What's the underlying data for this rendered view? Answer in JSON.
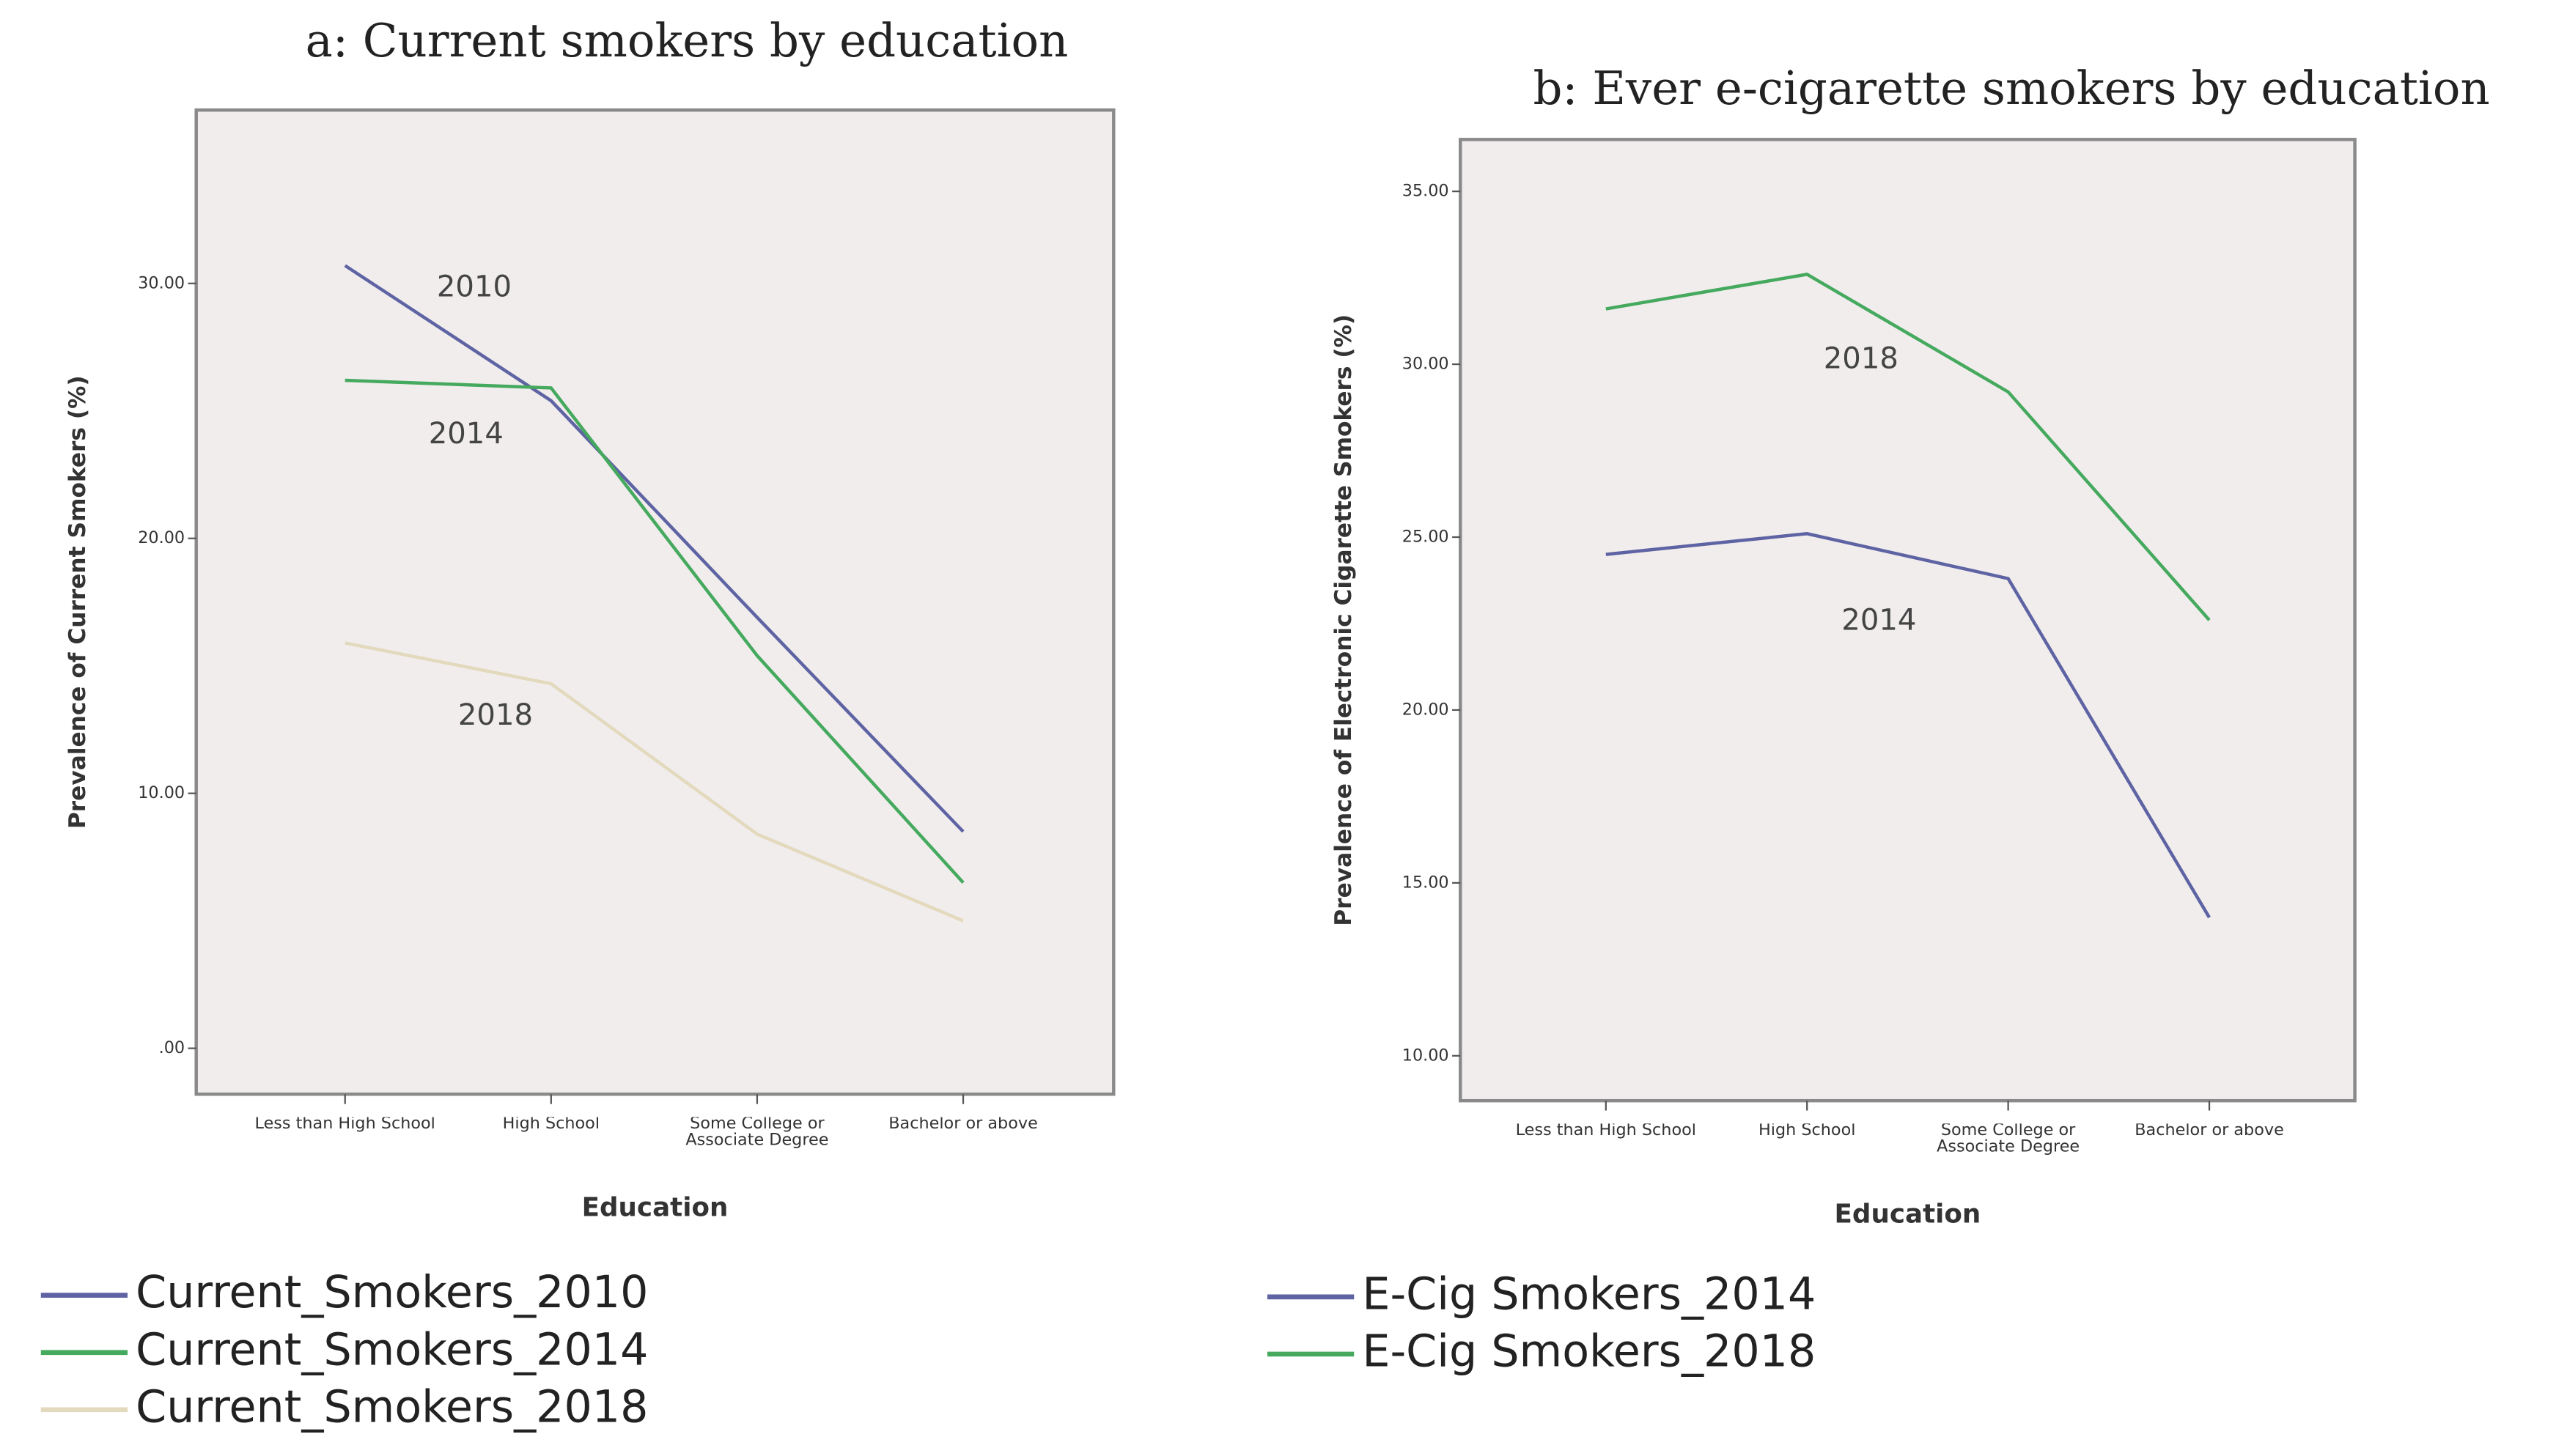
{
  "chart_data": [
    {
      "type": "line",
      "title": "a: Current smokers by education",
      "x_label": "Education",
      "y_label": "Prevalence of Current Smokers (%)",
      "categories": [
        "Less than High School",
        "High School",
        "Some College or Associate Degree",
        "Bachelor or above"
      ],
      "series": [
        {
          "name": "Current_Smokers_2010",
          "color": "#5e63a3",
          "values": [
            30.7,
            25.4,
            16.9,
            8.5
          ]
        },
        {
          "name": "Current_Smokers_2014",
          "color": "#45a95e",
          "values": [
            26.2,
            25.9,
            15.4,
            6.5
          ]
        },
        {
          "name": "Current_Smokers_2018",
          "color": "#e3d9bd",
          "values": [
            15.9,
            14.3,
            8.4,
            5.0
          ]
        }
      ],
      "annotations": [
        "2010",
        "2014",
        "2018"
      ],
      "ylim": [
        -1.8,
        36.8
      ],
      "yticks": [
        {
          "value": 0,
          "label": ".00"
        },
        {
          "value": 10,
          "label": "10.00"
        },
        {
          "value": 20,
          "label": "20.00"
        },
        {
          "value": 30,
          "label": "30.00"
        }
      ]
    },
    {
      "type": "line",
      "title": "b: Ever e-cigarette smokers by education",
      "x_label": "Education",
      "y_label": "Prevalence of Electronic Cigarette Smokers (%)",
      "categories": [
        "Less than High School",
        "High School",
        "Some College or Associate Degree",
        "Bachelor or above"
      ],
      "series": [
        {
          "name": "E-Cig Smokers_2014",
          "color": "#5e63a3",
          "values": [
            24.5,
            25.1,
            23.8,
            14.0
          ]
        },
        {
          "name": "E-Cig Smokers_2018",
          "color": "#45a95e",
          "values": [
            31.6,
            32.6,
            29.2,
            22.6
          ]
        }
      ],
      "annotations": [
        "2018",
        "2014"
      ],
      "ylim": [
        8.7,
        36.5
      ],
      "yticks": [
        {
          "value": 10,
          "label": "10.00"
        },
        {
          "value": 15,
          "label": "15.00"
        },
        {
          "value": 20,
          "label": "20.00"
        },
        {
          "value": 25,
          "label": "25.00"
        },
        {
          "value": 30,
          "label": "30.00"
        },
        {
          "value": 35,
          "label": "35.00"
        }
      ]
    }
  ]
}
